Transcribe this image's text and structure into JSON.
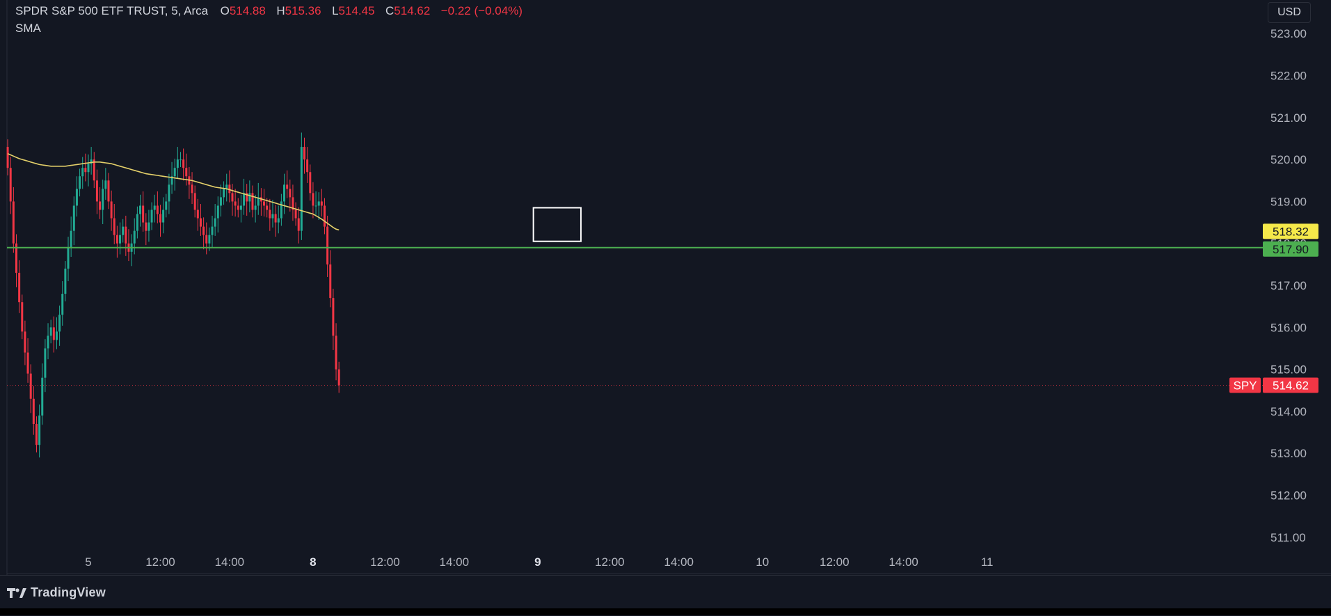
{
  "header": {
    "symbol_desc": "SPDR S&P 500 ETF TRUST, 5, Arca",
    "open_label": "O",
    "open": "514.88",
    "high_label": "H",
    "high": "515.36",
    "low_label": "L",
    "low": "514.45",
    "close_label": "C",
    "close": "514.62",
    "change": "−0.22 (−0.04%)",
    "indicator": "SMA"
  },
  "currency": "USD",
  "brand": "TradingView",
  "colors": {
    "background": "#131722",
    "up": "#22ab94",
    "down": "#f23645",
    "sma": "#e4d06a",
    "support_line": "#4caf50",
    "sma_badge": "#f5e94a",
    "last_price": "#f23645",
    "box": "#ffffff"
  },
  "chart_data": {
    "type": "candlestick",
    "symbol": "SPY",
    "interval": "5",
    "exchange": "Arca",
    "ylim": [
      510.4,
      523.8
    ],
    "y_ticks": [
      "523.00",
      "522.00",
      "521.00",
      "520.00",
      "519.00",
      "518.00",
      "517.00",
      "516.00",
      "515.00",
      "514.00",
      "513.00",
      "512.00",
      "511.00"
    ],
    "x_ticks": [
      {
        "label": "5",
        "bar": 0,
        "bold": false
      },
      {
        "label": "12:00",
        "bar": 25,
        "bold": false
      },
      {
        "label": "14:00",
        "bar": 49,
        "bold": false
      },
      {
        "label": "8",
        "bar": 78,
        "bold": true
      },
      {
        "label": "12:00",
        "bar": 103,
        "bold": false
      },
      {
        "label": "14:00",
        "bar": 127,
        "bold": false
      },
      {
        "label": "9",
        "bar": 156,
        "bold": true
      },
      {
        "label": "12:00",
        "bar": 181,
        "bold": false
      },
      {
        "label": "14:00",
        "bar": 205,
        "bold": false
      },
      {
        "label": "10",
        "bar": 234,
        "bold": false
      },
      {
        "label": "12:00",
        "bar": 259,
        "bold": false
      },
      {
        "label": "14:00",
        "bar": 283,
        "bold": false
      },
      {
        "label": "11",
        "bar": 312,
        "bold": false
      }
    ],
    "support_level": 517.9,
    "support_label": "517.90",
    "sma_value": 518.32,
    "sma_label": "518.32",
    "last_price": 514.62,
    "last_price_label": "514.62",
    "symbol_tag": "SPY",
    "highlight_box": {
      "bar_from": 154.5,
      "bar_to": 171,
      "price_top": 518.85,
      "price_bottom": 518.05
    },
    "closes": [
      519.8,
      519.0,
      518.0,
      517.3,
      516.6,
      515.9,
      515.4,
      514.9,
      514.3,
      513.7,
      513.2,
      513.9,
      514.8,
      515.5,
      515.8,
      516.0,
      515.7,
      515.9,
      516.3,
      516.8,
      517.4,
      517.9,
      518.3,
      518.9,
      519.3,
      519.6,
      519.8,
      519.7,
      519.9,
      520.0,
      519.5,
      519.0,
      518.8,
      519.3,
      519.5,
      519.0,
      518.6,
      518.2,
      518.0,
      518.2,
      518.4,
      518.0,
      517.8,
      518.0,
      518.3,
      518.7,
      518.9,
      518.5,
      518.3,
      518.5,
      518.8,
      518.9,
      518.7,
      518.5,
      518.8,
      519.0,
      519.4,
      519.6,
      519.8,
      520.0,
      520.0,
      519.8,
      519.6,
      519.4,
      519.2,
      518.8,
      518.6,
      518.4,
      518.2,
      518.0,
      518.2,
      518.4,
      518.6,
      518.9,
      519.1,
      519.3,
      519.4,
      519.2,
      519.0,
      518.9,
      518.8,
      518.9,
      519.2,
      519.0,
      519.2,
      518.8,
      518.9,
      519.1,
      519.0,
      518.9,
      518.8,
      518.6,
      518.7,
      518.5,
      518.6,
      519.0,
      519.4,
      519.3,
      519.1,
      518.8,
      518.6,
      518.3,
      520.3,
      520.0,
      519.7,
      519.2,
      518.9,
      518.9,
      519.0,
      518.9,
      518.4,
      517.5,
      516.7,
      515.8,
      515.0,
      514.62
    ],
    "sma": [
      520.14,
      520.11,
      520.08,
      520.05,
      520.02,
      520.0,
      519.98,
      519.96,
      519.94,
      519.92,
      519.9,
      519.88,
      519.87,
      519.86,
      519.85,
      519.84,
      519.84,
      519.84,
      519.84,
      519.84,
      519.84,
      519.85,
      519.86,
      519.87,
      519.88,
      519.89,
      519.9,
      519.91,
      519.92,
      519.93,
      519.94,
      519.94,
      519.94,
      519.93,
      519.92,
      519.91,
      519.9,
      519.88,
      519.86,
      519.84,
      519.82,
      519.8,
      519.78,
      519.76,
      519.74,
      519.72,
      519.7,
      519.68,
      519.66,
      519.65,
      519.64,
      519.63,
      519.62,
      519.61,
      519.6,
      519.59,
      519.58,
      519.57,
      519.56,
      519.55,
      519.54,
      519.53,
      519.52,
      519.51,
      519.5,
      519.48,
      519.46,
      519.44,
      519.42,
      519.4,
      519.38,
      519.36,
      519.34,
      519.33,
      519.32,
      519.31,
      519.3,
      519.28,
      519.26,
      519.24,
      519.22,
      519.2,
      519.18,
      519.16,
      519.14,
      519.12,
      519.1,
      519.08,
      519.06,
      519.04,
      519.02,
      519.0,
      518.98,
      518.96,
      518.94,
      518.92,
      518.9,
      518.88,
      518.86,
      518.84,
      518.82,
      518.8,
      518.78,
      518.76,
      518.74,
      518.72,
      518.7,
      518.66,
      518.62,
      518.58,
      518.53,
      518.48,
      518.43,
      518.38,
      518.34,
      518.32
    ]
  }
}
